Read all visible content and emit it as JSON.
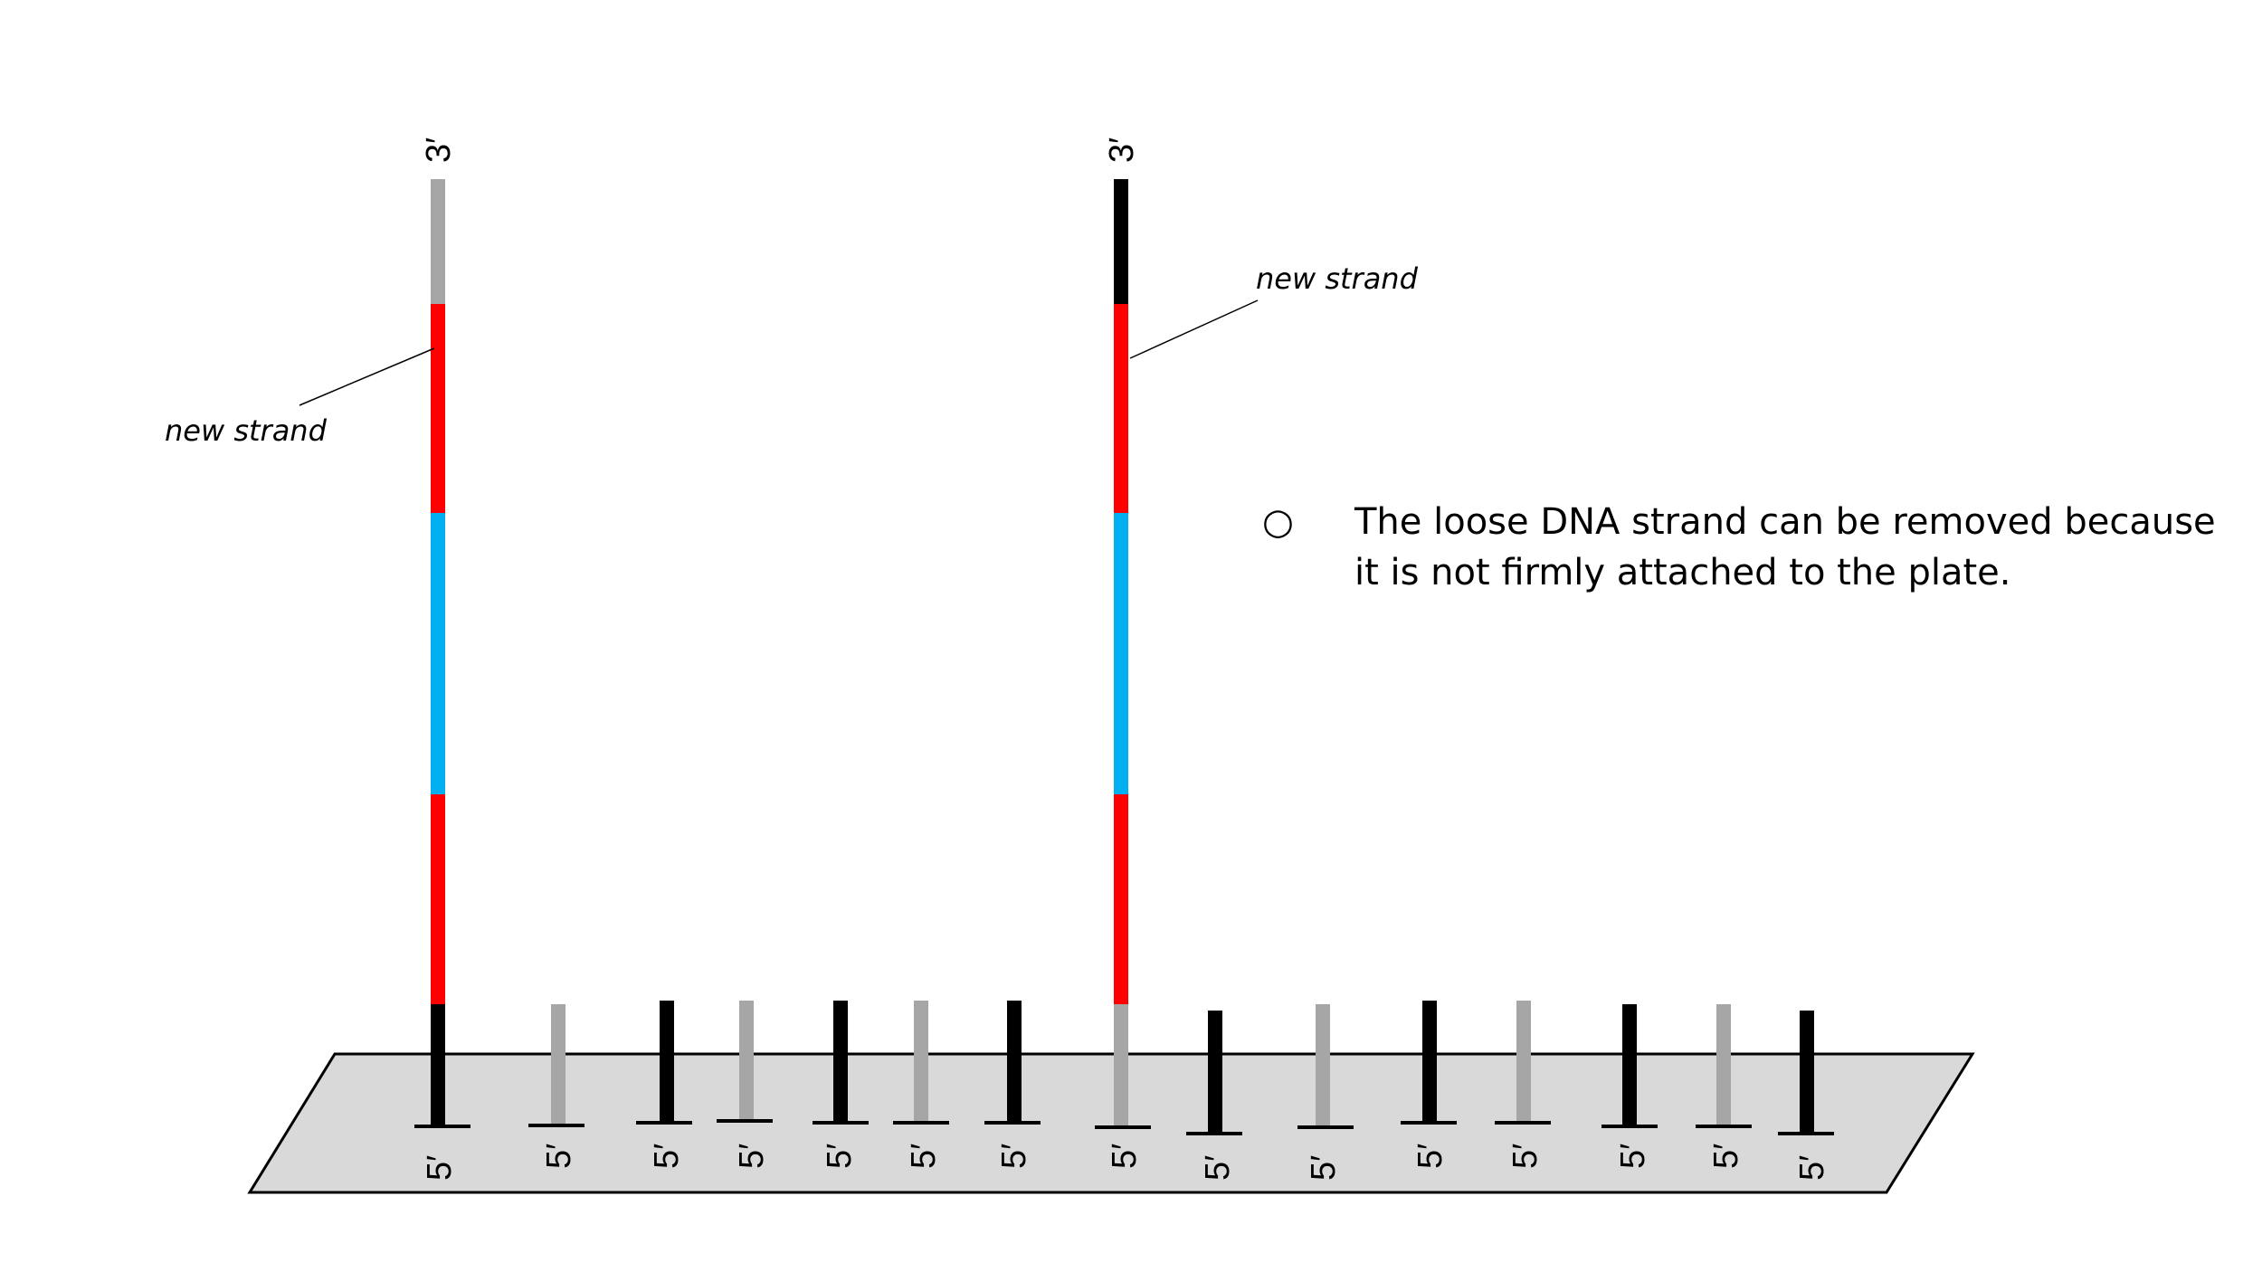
{
  "colors": {
    "plate_fill": "#d9d9d9",
    "plate_stroke": "#000000",
    "black": "#000000",
    "gray": "#a6a6a6",
    "red": "#ff0000",
    "blue": "#00b0f0"
  },
  "labels": {
    "three_prime": "3′",
    "five_prime": "5′",
    "new_strand": "new strand"
  },
  "note": {
    "bullet": "○",
    "line1": "The loose DNA strand can be removed because",
    "line2": "it is not firmly attached to the plate."
  },
  "long_strands": [
    {
      "name": "left",
      "segments": [
        "gray",
        "red",
        "blue",
        "red",
        "black"
      ]
    },
    {
      "name": "right",
      "segments": [
        "black",
        "red",
        "blue",
        "red",
        "gray"
      ]
    }
  ],
  "short_strands": [
    "gray",
    "black",
    "gray",
    "black",
    "gray",
    "black",
    "black",
    "gray",
    "black",
    "gray",
    "black",
    "gray",
    "black"
  ]
}
